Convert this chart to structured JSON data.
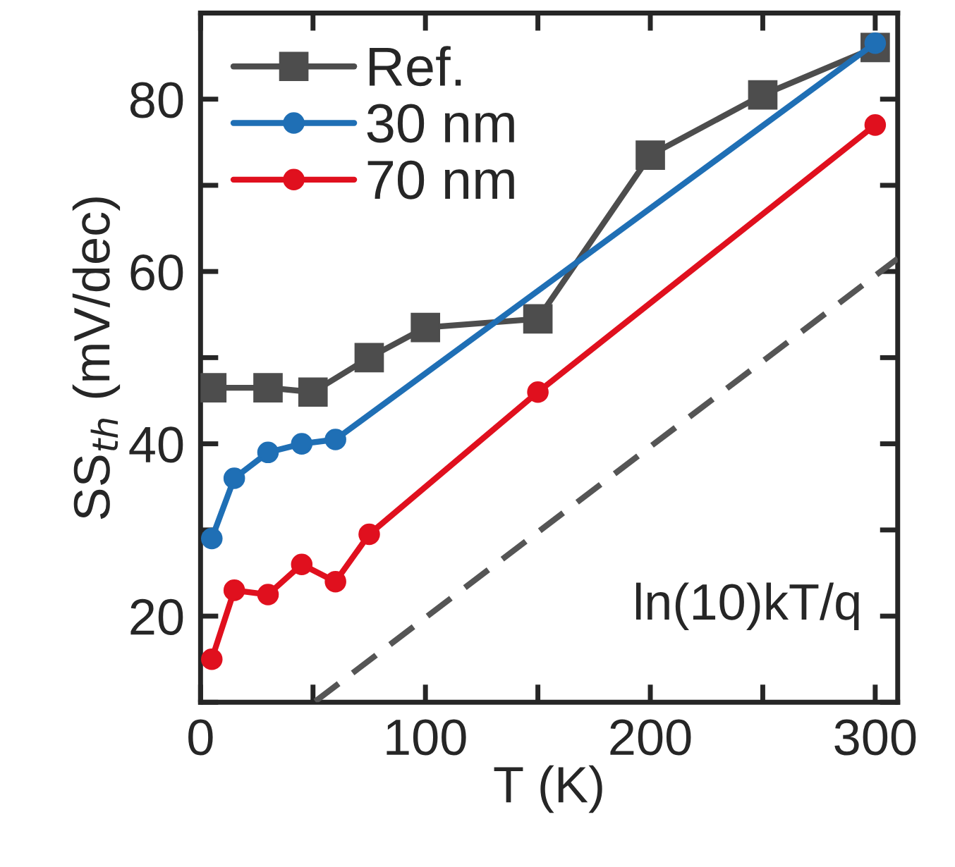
{
  "chart_data": {
    "type": "line",
    "xlabel": "T (K)",
    "ylabel": "SS$_{th}$ (mV/dec)",
    "xlim": [
      0,
      310
    ],
    "ylim": [
      10,
      90
    ],
    "xticks": [
      0,
      {
        "value": 50,
        "label": null
      },
      100,
      {
        "value": 150,
        "label": null
      },
      200,
      {
        "value": 250,
        "label": null
      },
      300
    ],
    "yticks": [
      {
        "value": 10,
        "label": null
      },
      20,
      {
        "value": 30,
        "label": null
      },
      40,
      {
        "value": 50,
        "label": null
      },
      60,
      {
        "value": 70,
        "label": null
      },
      80
    ],
    "grid": false,
    "legend": "top left",
    "series": [
      {
        "name": "Ref.",
        "color": "#4d4d4d",
        "marker": "square",
        "x": [
          5,
          30,
          50,
          75,
          100,
          150,
          200,
          250,
          300
        ],
        "values": [
          46.5,
          46.5,
          46,
          50,
          53.5,
          54.5,
          73.5,
          80.5,
          86
        ]
      },
      {
        "name": "30 nm",
        "color": "#1f6fb5",
        "marker": "circle",
        "x": [
          5,
          15,
          30,
          45,
          60,
          300
        ],
        "values": [
          29,
          36,
          39,
          40,
          40.5,
          86.5
        ]
      },
      {
        "name": "70 nm",
        "color": "#e0101e",
        "marker": "circle",
        "x": [
          5,
          15,
          30,
          45,
          60,
          75,
          150,
          300
        ],
        "values": [
          15,
          23,
          22.5,
          26,
          24,
          29.5,
          46,
          77
        ]
      },
      {
        "color": "#555555",
        "marker": "none",
        "line_style": "dashed",
        "x": [
          51,
          310
        ],
        "values": [
          10.1,
          61.5
        ]
      }
    ],
    "annotations": [
      "ln(10)kT/q"
    ]
  }
}
